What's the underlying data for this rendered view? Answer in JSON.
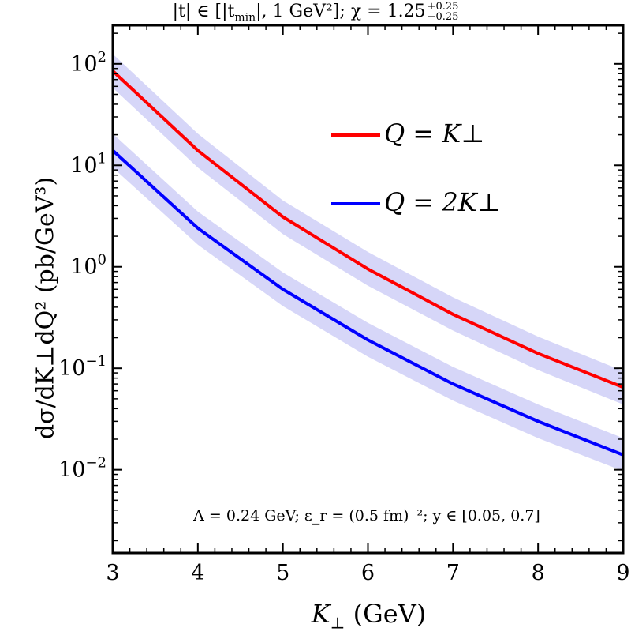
{
  "chart_data": {
    "type": "line",
    "title": "|t| ∈ [|t_min|, 1 GeV²];  χ = 1.25 +0.25 −0.25",
    "xlabel": "K⊥ (GeV)",
    "ylabel": "dσ/dK⊥dQ² (pb/GeV³)",
    "xlim": [
      3,
      9
    ],
    "ylim_log10": [
      -2.82,
      2.38
    ],
    "yscale": "log",
    "x_ticks": [
      "3",
      "4",
      "5",
      "6",
      "7",
      "8",
      "9"
    ],
    "y_ticks": [
      {
        "label": "10",
        "exp": "2",
        "log": 2
      },
      {
        "label": "10",
        "exp": "1",
        "log": 1
      },
      {
        "label": "10",
        "exp": "0",
        "log": 0
      },
      {
        "label": "10",
        "exp": "−1",
        "log": -1
      },
      {
        "label": "10",
        "exp": "−2",
        "log": -2
      }
    ],
    "annotation": "Λ = 0.24 GeV;  ε_r = (0.5 fm)⁻²;  y ∈ [0.05, 0.7]",
    "legend_position": "top-right",
    "band_color": "#d6d6f8",
    "series": [
      {
        "name": "Q = K⊥",
        "color": "#ff0000",
        "x": [
          3,
          4,
          5,
          6,
          7,
          8,
          9
        ],
        "y": [
          85,
          14,
          3.1,
          0.95,
          0.34,
          0.14,
          0.065
        ],
        "y_low": [
          58,
          9.5,
          2.1,
          0.65,
          0.235,
          0.096,
          0.044
        ],
        "y_high": [
          125,
          20.5,
          4.5,
          1.4,
          0.5,
          0.205,
          0.094
        ]
      },
      {
        "name": "Q = 2K⊥",
        "color": "#0000ff",
        "x": [
          3,
          4,
          5,
          6,
          7,
          8,
          9
        ],
        "y": [
          14,
          2.4,
          0.6,
          0.19,
          0.07,
          0.03,
          0.014
        ],
        "y_low": [
          9.5,
          1.65,
          0.41,
          0.13,
          0.048,
          0.0205,
          0.0097
        ],
        "y_high": [
          20.5,
          3.5,
          0.88,
          0.28,
          0.103,
          0.044,
          0.0205
        ]
      }
    ]
  },
  "labels": {
    "title_main": "|t| ∈ [|t",
    "title_sub": "min",
    "title_rest": "|, 1 GeV²];  χ = 1.25",
    "title_sup": "+0.25",
    "title_subsc": "−0.25",
    "legend_red": "Q = K⊥",
    "legend_blue": "Q = 2K⊥",
    "xlabel_var": "K",
    "xlabel_sub": "⊥",
    "xlabel_unit": " (GeV)",
    "ylabel_text": "dσ/dK⊥dQ² (pb/GeV³)",
    "footnote": "Λ = 0.24 GeV;  ε_r = (0.5 fm)⁻²;  y ∈ [0.05, 0.7]"
  }
}
